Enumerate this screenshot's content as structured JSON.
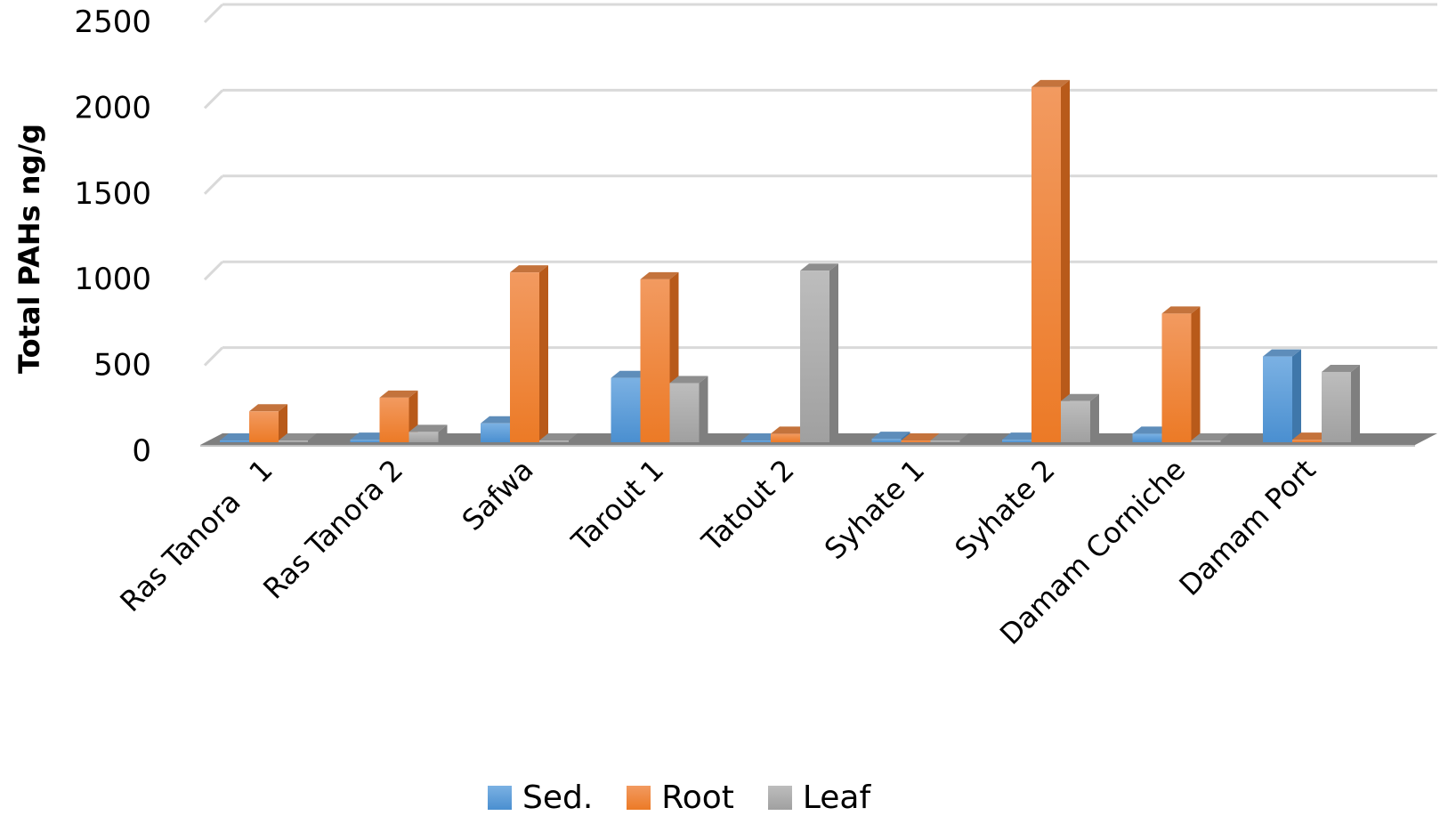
{
  "chart_data": {
    "type": "bar",
    "subtype": "3d-clustered-column",
    "title": "",
    "xlabel": "",
    "ylabel": "Total PAHs ng/g",
    "ylim": [
      0,
      2500
    ],
    "yticks": [
      0,
      500,
      1000,
      1500,
      2000,
      2500
    ],
    "grid": true,
    "legend_position": "bottom",
    "categories": [
      "Ras Tanora   1",
      "Ras Tanora 2",
      "Safwa",
      "Tarout 1",
      "Tatout 2",
      "Syhate 1",
      "Syhate 2",
      "Damam Corniche",
      "Damam Port"
    ],
    "series": [
      {
        "name": "Sed.",
        "color": "#5B9BD5",
        "values": [
          10,
          15,
          110,
          375,
          5,
          20,
          15,
          50,
          500
        ]
      },
      {
        "name": "Root",
        "color": "#ED7D31",
        "values": [
          180,
          260,
          990,
          950,
          50,
          5,
          2070,
          750,
          15
        ]
      },
      {
        "name": "Leaf",
        "color": "#A5A5A5",
        "values": [
          5,
          60,
          10,
          345,
          1000,
          0,
          240,
          5,
          410
        ]
      }
    ]
  },
  "legend": {
    "items": [
      {
        "label": "Sed.",
        "color": "#5B9BD5"
      },
      {
        "label": "Root",
        "color": "#ED7D31"
      },
      {
        "label": "Leaf",
        "color": "#A5A5A5"
      }
    ]
  }
}
